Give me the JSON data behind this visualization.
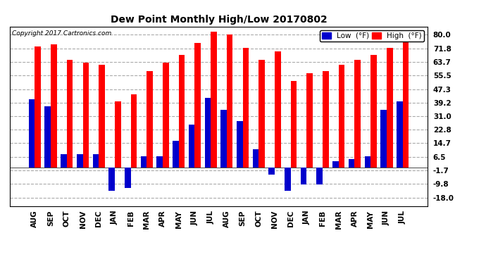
{
  "title": "Dew Point Monthly High/Low 20170802",
  "copyright": "Copyright 2017 Cartronics.com",
  "categories": [
    "AUG",
    "SEP",
    "OCT",
    "NOV",
    "DEC",
    "JAN",
    "FEB",
    "MAR",
    "APR",
    "MAY",
    "JUN",
    "JUL",
    "AUG",
    "SEP",
    "OCT",
    "NOV",
    "DEC",
    "JAN",
    "FEB",
    "MAR",
    "APR",
    "MAY",
    "JUN",
    "JUL"
  ],
  "high_values": [
    73,
    74,
    65,
    63,
    62,
    40,
    44,
    58,
    63,
    68,
    75,
    82,
    80,
    72,
    65,
    70,
    52,
    57,
    58,
    62,
    65,
    68,
    72,
    80
  ],
  "low_values": [
    41,
    37,
    8,
    8,
    8,
    -14,
    -12,
    7,
    7,
    16,
    26,
    42,
    35,
    28,
    11,
    -4,
    -14,
    -10,
    -10,
    4,
    5,
    7,
    35,
    40
  ],
  "high_color": "#ff0000",
  "low_color": "#0000cc",
  "background_color": "#ffffff",
  "grid_color": "#aaaaaa",
  "ytick_values": [
    -18.0,
    -9.8,
    -1.7,
    6.5,
    14.7,
    22.8,
    31.0,
    39.2,
    47.3,
    55.5,
    63.7,
    71.8,
    80.0
  ],
  "ytick_labels": [
    "-18.0",
    "-9.8",
    "-1.7",
    "6.5",
    "14.7",
    "22.8",
    "31.0",
    "39.2",
    "47.3",
    "55.5",
    "63.7",
    "71.8",
    "80.0"
  ],
  "ylim": [
    -23,
    85
  ],
  "bar_width": 0.38,
  "legend_low_label": "Low  (°F)",
  "legend_high_label": "High  (°F)",
  "figwidth": 6.9,
  "figheight": 3.75,
  "dpi": 100
}
